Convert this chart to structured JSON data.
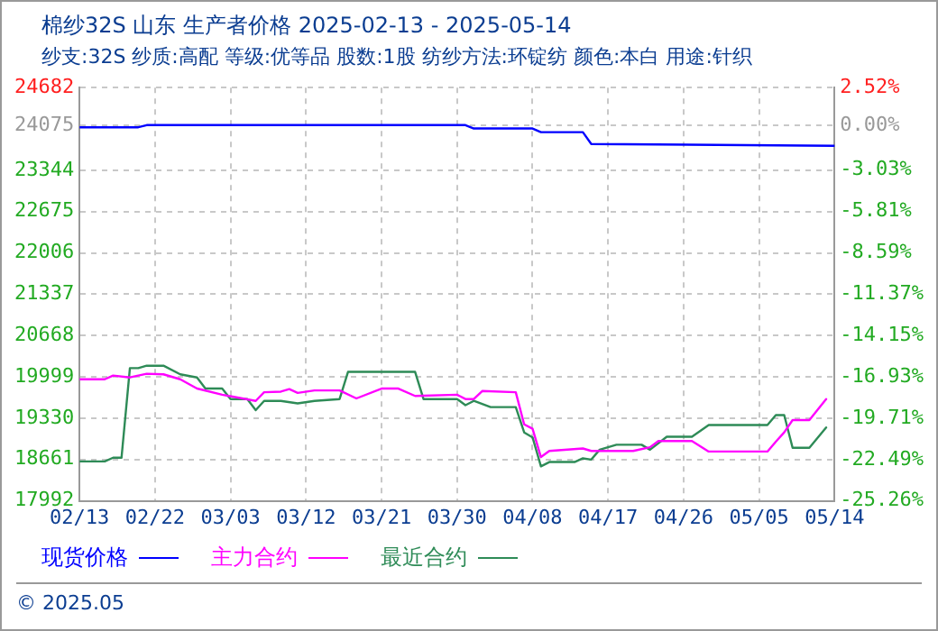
{
  "chart_data": {
    "type": "line",
    "title": "棉纱32S 山东 生产者价格 2025-02-13 - 2025-05-14",
    "subtitle": "纱支:32S 纱质:高配 等级:优等品 股数:1股 纺纱方法:环锭纺 颜色:本白 用途:针织",
    "annotations": [
      "© 2025.05"
    ],
    "series": [
      {
        "name": "现货价格",
        "color": "#0000ff",
        "x": [
          "2025-02-13",
          "2025-02-20",
          "2025-02-21",
          "2025-03-31",
          "2025-04-01",
          "2025-04-08",
          "2025-04-09",
          "2025-04-14",
          "2025-04-15",
          "2025-05-14"
        ],
        "values": [
          24040,
          24040,
          24075,
          24075,
          24020,
          24020,
          23960,
          23960,
          23770,
          23740
        ]
      },
      {
        "name": "主力合约",
        "color": "#ff00ff",
        "x": [
          "2025-02-13",
          "2025-02-16",
          "2025-02-17",
          "2025-02-19",
          "2025-02-21",
          "2025-02-23",
          "2025-02-25",
          "2025-02-27",
          "2025-03-02",
          "2025-03-06",
          "2025-03-07",
          "2025-03-09",
          "2025-03-10",
          "2025-03-11",
          "2025-03-13",
          "2025-03-16",
          "2025-03-18",
          "2025-03-21",
          "2025-03-23",
          "2025-03-25",
          "2025-03-30",
          "2025-03-31",
          "2025-04-01",
          "2025-04-02",
          "2025-04-06",
          "2025-04-07",
          "2025-04-08",
          "2025-04-09",
          "2025-04-10",
          "2025-04-14",
          "2025-04-15",
          "2025-04-20",
          "2025-04-22",
          "2025-04-23",
          "2025-04-27",
          "2025-04-29",
          "2025-05-06",
          "2025-05-07",
          "2025-05-08",
          "2025-05-09",
          "2025-05-11",
          "2025-05-13"
        ],
        "values": [
          19960,
          19960,
          20020,
          19990,
          20050,
          20040,
          19960,
          19810,
          19710,
          19610,
          19750,
          19760,
          19800,
          19740,
          19780,
          19780,
          19650,
          19810,
          19810,
          19690,
          19710,
          19640,
          19640,
          19770,
          19750,
          19230,
          19160,
          18700,
          18800,
          18840,
          18800,
          18800,
          18860,
          18960,
          18960,
          18790,
          18790,
          18950,
          19100,
          19300,
          19300,
          19640
        ]
      },
      {
        "name": "最近合约",
        "color": "#2e8b57",
        "x": [
          "2025-02-13",
          "2025-02-16",
          "2025-02-17",
          "2025-02-18",
          "2025-02-19",
          "2025-02-20",
          "2025-02-21",
          "2025-02-23",
          "2025-02-25",
          "2025-02-27",
          "2025-02-28",
          "2025-03-02",
          "2025-03-03",
          "2025-03-05",
          "2025-03-06",
          "2025-03-07",
          "2025-03-09",
          "2025-03-11",
          "2025-03-13",
          "2025-03-16",
          "2025-03-17",
          "2025-03-25",
          "2025-03-26",
          "2025-03-30",
          "2025-03-31",
          "2025-04-01",
          "2025-04-03",
          "2025-04-06",
          "2025-04-07",
          "2025-04-08",
          "2025-04-09",
          "2025-04-10",
          "2025-04-13",
          "2025-04-14",
          "2025-04-15",
          "2025-04-16",
          "2025-04-18",
          "2025-04-21",
          "2025-04-22",
          "2025-04-24",
          "2025-04-27",
          "2025-04-29",
          "2025-05-06",
          "2025-05-07",
          "2025-05-08",
          "2025-05-09",
          "2025-05-11",
          "2025-05-13"
        ],
        "values": [
          18630,
          18630,
          18690,
          18690,
          20140,
          20140,
          20180,
          20180,
          20040,
          19990,
          19810,
          19810,
          19640,
          19640,
          19460,
          19610,
          19610,
          19570,
          19610,
          19640,
          20080,
          20080,
          19640,
          19640,
          19540,
          19610,
          19510,
          19510,
          19100,
          19020,
          18550,
          18620,
          18620,
          18680,
          18660,
          18820,
          18900,
          18900,
          18820,
          19030,
          19030,
          19220,
          19220,
          19380,
          19380,
          18850,
          18850,
          19180
        ]
      }
    ],
    "xlim": [
      "2025-02-13",
      "2025-05-14"
    ],
    "xticks": [
      {
        "value": "2025-02-13",
        "label": "02/13"
      },
      {
        "value": "2025-02-22",
        "label": "02/22"
      },
      {
        "value": "2025-03-03",
        "label": "03/03"
      },
      {
        "value": "2025-03-12",
        "label": "03/12"
      },
      {
        "value": "2025-03-21",
        "label": "03/21"
      },
      {
        "value": "2025-03-30",
        "label": "03/30"
      },
      {
        "value": "2025-04-08",
        "label": "04/08"
      },
      {
        "value": "2025-04-17",
        "label": "04/17"
      },
      {
        "value": "2025-04-26",
        "label": "04/26"
      },
      {
        "value": "2025-05-05",
        "label": "05/05"
      },
      {
        "value": "2025-05-14",
        "label": "05/14"
      }
    ],
    "ylim": [
      17992,
      24682
    ],
    "yticks": [
      17992,
      18661,
      19330,
      19999,
      20668,
      21337,
      22006,
      22675,
      23344,
      24075,
      24682
    ],
    "y2lim": [
      -25.26,
      2.52
    ],
    "y2ticks": [
      {
        "value": -25.26,
        "label": "-25.26%"
      },
      {
        "value": -22.49,
        "label": "-22.49%"
      },
      {
        "value": -19.71,
        "label": "-19.71%"
      },
      {
        "value": -16.93,
        "label": "-16.93%"
      },
      {
        "value": -14.15,
        "label": "-14.15%"
      },
      {
        "value": -11.37,
        "label": "-11.37%"
      },
      {
        "value": -8.59,
        "label": "-8.59%"
      },
      {
        "value": -5.81,
        "label": "-5.81%"
      },
      {
        "value": -3.03,
        "label": "-3.03%"
      },
      {
        "value": 0,
        "label": "0.00%"
      },
      {
        "value": 2.52,
        "label": "2.52%"
      }
    ],
    "grid": true,
    "legend": "bottom",
    "marker": "none",
    "line_style": "solid"
  }
}
